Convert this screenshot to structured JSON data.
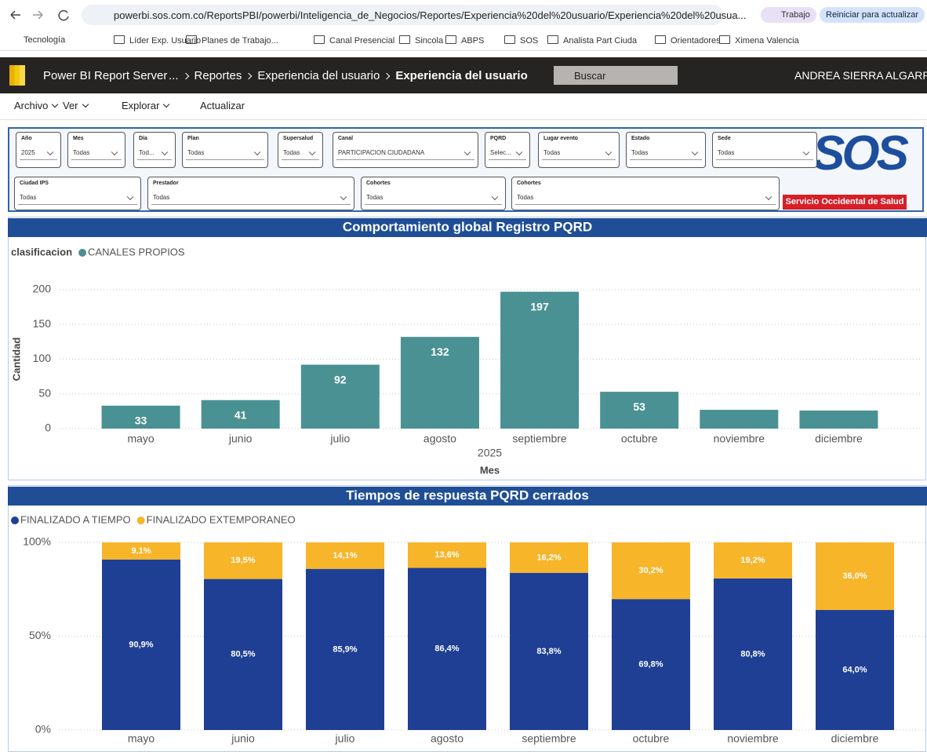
{
  "browser": {
    "url": "powerbi.sos.com.co/ReportsPBI/powerbi/Inteligencia_de_Negocios/Reportes/Experiencia%20del%20usuario/Experiencia%20del%20usua...",
    "profile": "Trabajo",
    "update_button": "Reiniciar para actualizar",
    "bookmarks": [
      "Tecnología",
      "Líder Exp. Usuario",
      "Planes de Trabajo...",
      "Canal Presencial",
      "Sincola",
      "ABPS",
      "SOS",
      "Analista Part Ciuda",
      "Orientadores",
      "Ximena Valencia"
    ]
  },
  "app": {
    "name": "Power BI Report Server",
    "breadcrumb": [
      "...",
      "Reportes",
      "Experiencia del usuario",
      "Experiencia del usuario"
    ],
    "search_placeholder": "Buscar",
    "user": "ANDREA SIERRA ALGARRA",
    "toolbar": [
      "Archivo",
      "Ver",
      "Explorar",
      "Actualizar"
    ]
  },
  "filters": [
    [
      {
        "label": "Año",
        "value": "2025"
      },
      {
        "label": "Mes",
        "value": "Todas"
      },
      {
        "label": "Día",
        "value": "Tod..."
      },
      {
        "label": "Plan",
        "value": "Todas"
      },
      {
        "label": "Supersalud",
        "value": "Todas"
      },
      {
        "label": "Canal",
        "value": "PARTICIPACION CIUDADANA"
      },
      {
        "label": "PQRD",
        "value": "Selec..."
      },
      {
        "label": "Lugar evento",
        "value": "Todas"
      },
      {
        "label": "Estado",
        "value": "Todas"
      },
      {
        "label": "Sede",
        "value": "Todas"
      }
    ],
    [
      {
        "label": "Ciudad IPS",
        "value": "Todas"
      },
      {
        "label": "Prestador",
        "value": "Todas"
      },
      {
        "label": "Cohortes",
        "value": "Todas"
      },
      {
        "label": "Cohortes",
        "value": "Todas"
      }
    ]
  ],
  "logo": {
    "brand": "SOS",
    "tagline": "Servicio Occidental de Salud"
  },
  "chart_data": [
    {
      "type": "bar",
      "title": "Comportamiento global Registro PQRD",
      "legend_title": "clasificacion",
      "x_label": "Mes",
      "x_sublabel": "2025",
      "y_label": "Cantidad",
      "categories": [
        "mayo",
        "junio",
        "julio",
        "agosto",
        "septiembre",
        "octubre",
        "noviembre",
        "diciembre"
      ],
      "series": [
        {
          "name": "CANALES PROPIOS",
          "color": "#4a9193",
          "values": [
            33,
            41,
            92,
            132,
            197,
            53,
            27,
            26
          ],
          "value_labels": [
            "33",
            "41",
            "92",
            "132",
            "197",
            "53",
            null,
            null
          ]
        }
      ],
      "ylim": [
        0,
        200
      ],
      "yticks": [
        0,
        50,
        100,
        150,
        200
      ],
      "grid": true,
      "stacked": false
    },
    {
      "type": "bar",
      "title": "Tiempos de respuesta PQRD cerrados",
      "categories": [
        "mayo",
        "junio",
        "julio",
        "agosto",
        "septiembre",
        "octubre",
        "noviembre",
        "diciembre"
      ],
      "series": [
        {
          "name": "FINALIZADO A TIEMPO",
          "color": "#1f3f94",
          "values": [
            90.9,
            80.5,
            85.9,
            86.4,
            83.8,
            69.8,
            80.8,
            64.0
          ],
          "value_labels": [
            "90,9%",
            "80,5%",
            "85,9%",
            "86,4%",
            "83,8%",
            "69,8%",
            "80,8%",
            "64,0%"
          ]
        },
        {
          "name": "FINALIZADO EXTEMPORANEO",
          "color": "#f7b52a",
          "values": [
            9.1,
            19.5,
            14.1,
            13.6,
            16.2,
            30.2,
            19.2,
            36.0
          ],
          "value_labels": [
            "9,1%",
            "19,5%",
            "14,1%",
            "13,6%",
            "16,2%",
            "30,2%",
            "19,2%",
            "36,0%"
          ]
        }
      ],
      "ylim": [
        0,
        100
      ],
      "yticks": [
        {
          "value": 0,
          "label": "0%"
        },
        {
          "value": 50,
          "label": "50%"
        },
        {
          "value": 100,
          "label": "100%"
        }
      ],
      "grid": true,
      "stacked": true
    }
  ]
}
